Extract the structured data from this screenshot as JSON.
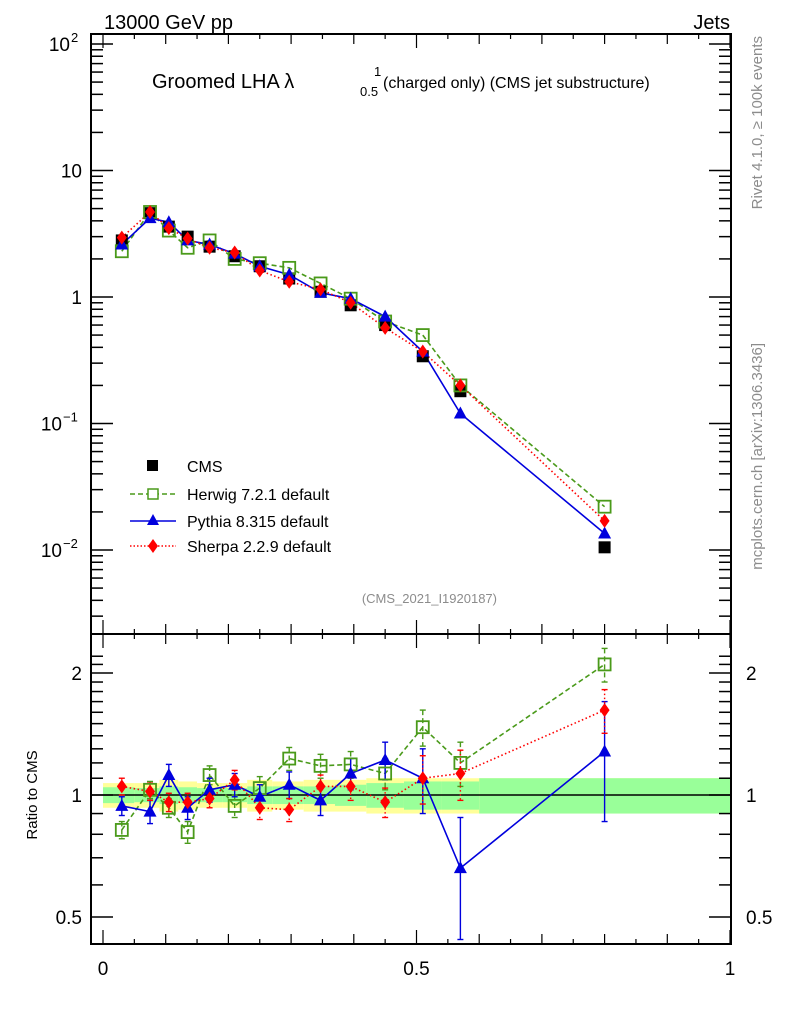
{
  "header": {
    "left": "13000 GeV pp",
    "right": "Jets"
  },
  "side_labels": {
    "top": "Rivet 4.1.0, ≥ 100k events",
    "bottom": "mcplots.cern.ch [arXiv:1306.3436]"
  },
  "chart_data": [
    {
      "type": "line",
      "title": "Groomed LHA λ",
      "title_sup": "1",
      "title_sub": "0.5",
      "title_suffix": "(charged only) (CMS jet substructure)",
      "analysis_tag": "(CMS_2021_I1920187)",
      "yscale": "log",
      "ylim": [
        0.002,
        100
      ],
      "xlim": [
        0,
        1
      ],
      "ytick_labels": [
        {
          "value": 100,
          "base": "10",
          "exp": "2"
        },
        {
          "value": 10,
          "base": "10",
          "exp": ""
        },
        {
          "value": 1,
          "base": "1",
          "exp": ""
        },
        {
          "value": 0.1,
          "base": "10",
          "exp": "−1"
        },
        {
          "value": 0.01,
          "base": "10",
          "exp": "−2"
        }
      ],
      "legend_position": "bottom-left",
      "x": [
        0.03,
        0.075,
        0.105,
        0.135,
        0.17,
        0.21,
        0.25,
        0.297,
        0.347,
        0.395,
        0.45,
        0.51,
        0.57,
        0.8
      ],
      "series": [
        {
          "name": "CMS",
          "color": "#000000",
          "marker": "square-filled",
          "line": "none",
          "values": [
            2.8,
            4.6,
            3.6,
            3.0,
            2.5,
            2.1,
            1.75,
            1.4,
            1.1,
            0.86,
            0.6,
            0.34,
            0.18,
            0.0105
          ]
        },
        {
          "name": "Herwig 7.2.1 default",
          "color": "#4a9a1a",
          "marker": "square-open",
          "line": "dashed",
          "values": [
            2.3,
            4.7,
            3.35,
            2.45,
            2.8,
            2.0,
            1.85,
            1.7,
            1.28,
            0.97,
            0.64,
            0.5,
            0.2,
            0.022
          ]
        },
        {
          "name": "Pythia 8.315 default",
          "color": "#0000dd",
          "marker": "triangle",
          "line": "solid",
          "values": [
            2.6,
            4.2,
            3.9,
            2.8,
            2.6,
            2.2,
            1.75,
            1.5,
            1.08,
            0.97,
            0.7,
            0.37,
            0.12,
            0.0135
          ]
        },
        {
          "name": "Sherpa 2.2.9 default",
          "color": "#ff0000",
          "marker": "diamond",
          "line": "dotted",
          "values": [
            2.95,
            4.7,
            3.5,
            2.9,
            2.45,
            2.25,
            1.62,
            1.32,
            1.15,
            0.9,
            0.57,
            0.37,
            0.2,
            0.017
          ]
        }
      ]
    },
    {
      "type": "line",
      "ylabel": "Ratio to CMS",
      "yscale": "log",
      "ylim": [
        0.41,
        2.3
      ],
      "xlim": [
        0,
        1
      ],
      "ytick_labels": [
        {
          "value": 2,
          "label": "2"
        },
        {
          "value": 1,
          "label": "1"
        },
        {
          "value": 0.5,
          "label": "0.5"
        }
      ],
      "xtick_labels": [
        {
          "value": 0,
          "label": "0"
        },
        {
          "value": 0.5,
          "label": "0.5"
        },
        {
          "value": 1,
          "label": "1"
        }
      ],
      "bands": {
        "edges": [
          0,
          0.05,
          0.09,
          0.12,
          0.15,
          0.19,
          0.23,
          0.27,
          0.32,
          0.37,
          0.42,
          0.48,
          0.54,
          0.6,
          1.0
        ],
        "inner": [
          0.045,
          0.04,
          0.05,
          0.045,
          0.04,
          0.04,
          0.05,
          0.05,
          0.05,
          0.06,
          0.07,
          0.08,
          0.08,
          0.1
        ],
        "outer": [
          0.07,
          0.07,
          0.09,
          0.08,
          0.07,
          0.07,
          0.09,
          0.08,
          0.09,
          0.09,
          0.1,
          0.1,
          0.1,
          0.1
        ],
        "inner_color": "#99ff99",
        "outer_color": "#ffff99"
      },
      "x": [
        0.03,
        0.075,
        0.105,
        0.135,
        0.17,
        0.21,
        0.25,
        0.297,
        0.347,
        0.395,
        0.45,
        0.51,
        0.57,
        0.8
      ],
      "series": [
        {
          "name": "Herwig 7.2.1 default",
          "color": "#4a9a1a",
          "marker": "square-open",
          "line": "dashed",
          "values": [
            0.82,
            1.03,
            0.93,
            0.81,
            1.12,
            0.94,
            1.04,
            1.23,
            1.18,
            1.19,
            1.13,
            1.47,
            1.2,
            2.1
          ],
          "errors": [
            0.04,
            0.05,
            0.05,
            0.05,
            0.06,
            0.06,
            0.07,
            0.08,
            0.08,
            0.09,
            0.1,
            0.15,
            0.15,
            0.2
          ]
        },
        {
          "name": "Pythia 8.315 default",
          "color": "#0000dd",
          "marker": "triangle",
          "line": "solid",
          "values": [
            0.94,
            0.91,
            1.12,
            0.93,
            1.03,
            1.06,
            0.99,
            1.06,
            0.97,
            1.13,
            1.22,
            1.1,
            0.66,
            1.28
          ],
          "errors": [
            0.05,
            0.06,
            0.07,
            0.06,
            0.07,
            0.07,
            0.07,
            0.08,
            0.08,
            0.1,
            0.13,
            0.2,
            0.22,
            0.42
          ]
        },
        {
          "name": "Sherpa 2.2.9 default",
          "color": "#ff0000",
          "marker": "diamond",
          "line": "dotted",
          "values": [
            1.05,
            1.02,
            0.96,
            0.96,
            0.98,
            1.09,
            0.93,
            0.92,
            1.05,
            1.05,
            0.96,
            1.1,
            1.13,
            1.62
          ],
          "errors": [
            0.05,
            0.05,
            0.05,
            0.05,
            0.05,
            0.06,
            0.06,
            0.06,
            0.07,
            0.08,
            0.08,
            0.15,
            0.16,
            0.2
          ]
        }
      ]
    }
  ]
}
